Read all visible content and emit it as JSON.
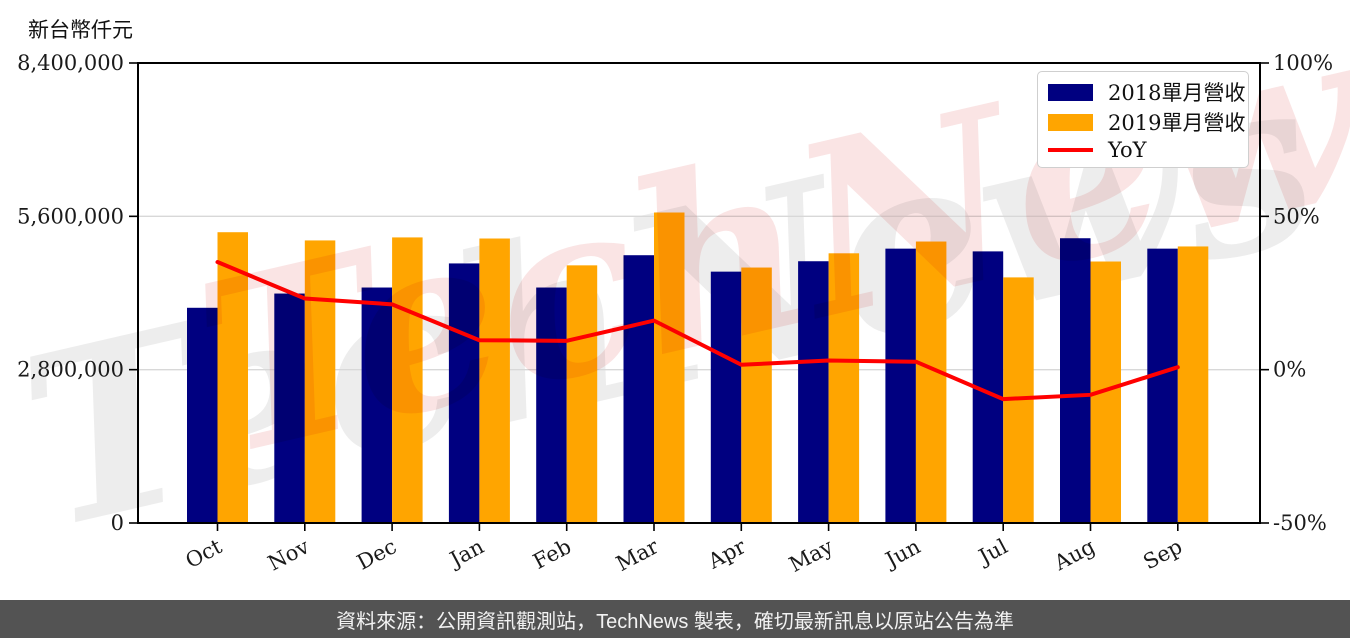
{
  "page": {
    "watermark_text": "TechNews"
  },
  "footer": {
    "text": "資料來源：公開資訊觀測站，TechNews 製表，確切最新訊息以原站公告為準",
    "background": "#535353",
    "text_color": "#f2f2f2"
  },
  "chart_data": {
    "type": "bar",
    "title": "",
    "ylabel": "新台幣仟元",
    "categories": [
      "Oct",
      "Nov",
      "Dec",
      "Jan",
      "Feb",
      "Mar",
      "Apr",
      "May",
      "Jun",
      "Jul",
      "Aug",
      "Sep"
    ],
    "series": [
      {
        "name": "2018單月營收",
        "type": "bar",
        "axis": "left",
        "color": "#000080",
        "values": [
          3930000,
          4190000,
          4300000,
          4740000,
          4300000,
          4890000,
          4590000,
          4780000,
          5010000,
          4960000,
          5200000,
          5010000
        ]
      },
      {
        "name": "2019單月營收",
        "type": "bar",
        "axis": "left",
        "color": "#FFA500",
        "values": [
          5310000,
          5160000,
          5215000,
          5195000,
          4705000,
          5670000,
          4665000,
          4925000,
          5140000,
          4485000,
          4775000,
          5050000
        ]
      },
      {
        "name": "YoY",
        "type": "line",
        "axis": "right",
        "unit": "%",
        "color": "#FF0000",
        "values": [
          35.1,
          23.2,
          21.3,
          9.6,
          9.4,
          16.0,
          1.6,
          3.0,
          2.6,
          -9.6,
          -8.2,
          0.8
        ]
      }
    ],
    "y_left": {
      "min": 0,
      "max": 8400000,
      "ticks": [
        {
          "value": 0,
          "label": "0"
        },
        {
          "value": 2800000,
          "label": "2,800,000"
        },
        {
          "value": 5600000,
          "label": "5,600,000"
        },
        {
          "value": 8400000,
          "label": "8,400,000"
        }
      ]
    },
    "y_right": {
      "min": -50,
      "max": 100,
      "ticks": [
        {
          "value": -50,
          "label": "-50%"
        },
        {
          "value": 0,
          "label": "0%"
        },
        {
          "value": 50,
          "label": "50%"
        },
        {
          "value": 100,
          "label": "100%"
        }
      ]
    },
    "legend_position": "top-right",
    "grid": true,
    "colors": {
      "grid": "#d8d8d8",
      "axis": "#000000",
      "tick_text": "#1a1a1a",
      "watermark_pink": "rgba(226,88,88,0.16)",
      "watermark_gray": "rgba(130,130,130,0.14)"
    }
  }
}
